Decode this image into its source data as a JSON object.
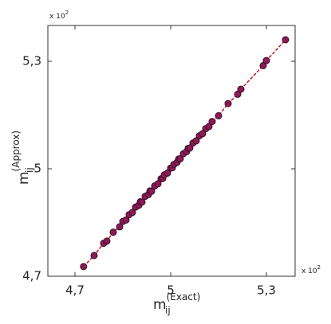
{
  "chart_data": {
    "type": "scatter",
    "xlabel": {
      "base": "m",
      "sub": "ij",
      "sup": "(Exact)"
    },
    "ylabel": {
      "base": "m",
      "sub": "ij",
      "sup": "(Approx)"
    },
    "x_multiplier": "x 10",
    "x_multiplier_exp": "2",
    "y_multiplier": "x 10",
    "y_multiplier_exp": "2",
    "xlim": [
      4.615,
      5.39
    ],
    "ylim": [
      4.7,
      5.4
    ],
    "xticks": [
      {
        "value": 4.7,
        "label": "4,7"
      },
      5,
      {
        "value": 5.3,
        "label": "5,3"
      }
    ],
    "yticks": [
      {
        "value": 4.7,
        "label": "4,7"
      },
      5,
      {
        "value": 5.3,
        "label": "5,3"
      }
    ],
    "color": "#8b1a55",
    "edge_color": "#3a1028",
    "line_color": "#cc1122",
    "series": [
      {
        "x": [
          4.727,
          4.76,
          4.79,
          4.8,
          4.82,
          4.84,
          4.85,
          4.86,
          4.87,
          4.88,
          4.89,
          4.9,
          4.905,
          4.91,
          4.92,
          4.93,
          4.935,
          4.94,
          4.95,
          4.96,
          4.97,
          4.975,
          4.98,
          4.99,
          5.0,
          5.005,
          5.01,
          5.02,
          5.025,
          5.03,
          5.04,
          5.05,
          5.055,
          5.06,
          5.07,
          5.08,
          5.09,
          5.1,
          5.11,
          5.12,
          5.13,
          5.15,
          5.18,
          5.21,
          5.22,
          5.29,
          5.3,
          5.36
        ],
        "values": [
          4.727,
          4.758,
          4.792,
          4.798,
          4.823,
          4.838,
          4.853,
          4.857,
          4.872,
          4.878,
          4.893,
          4.898,
          4.908,
          4.907,
          4.923,
          4.928,
          4.938,
          4.937,
          4.952,
          4.958,
          4.972,
          4.973,
          4.983,
          4.988,
          5.002,
          5.003,
          5.012,
          5.018,
          5.027,
          5.028,
          5.042,
          5.048,
          5.057,
          5.058,
          5.072,
          5.078,
          5.092,
          5.098,
          5.112,
          5.118,
          5.132,
          5.148,
          5.182,
          5.208,
          5.222,
          5.288,
          5.302,
          5.36
        ]
      }
    ]
  }
}
